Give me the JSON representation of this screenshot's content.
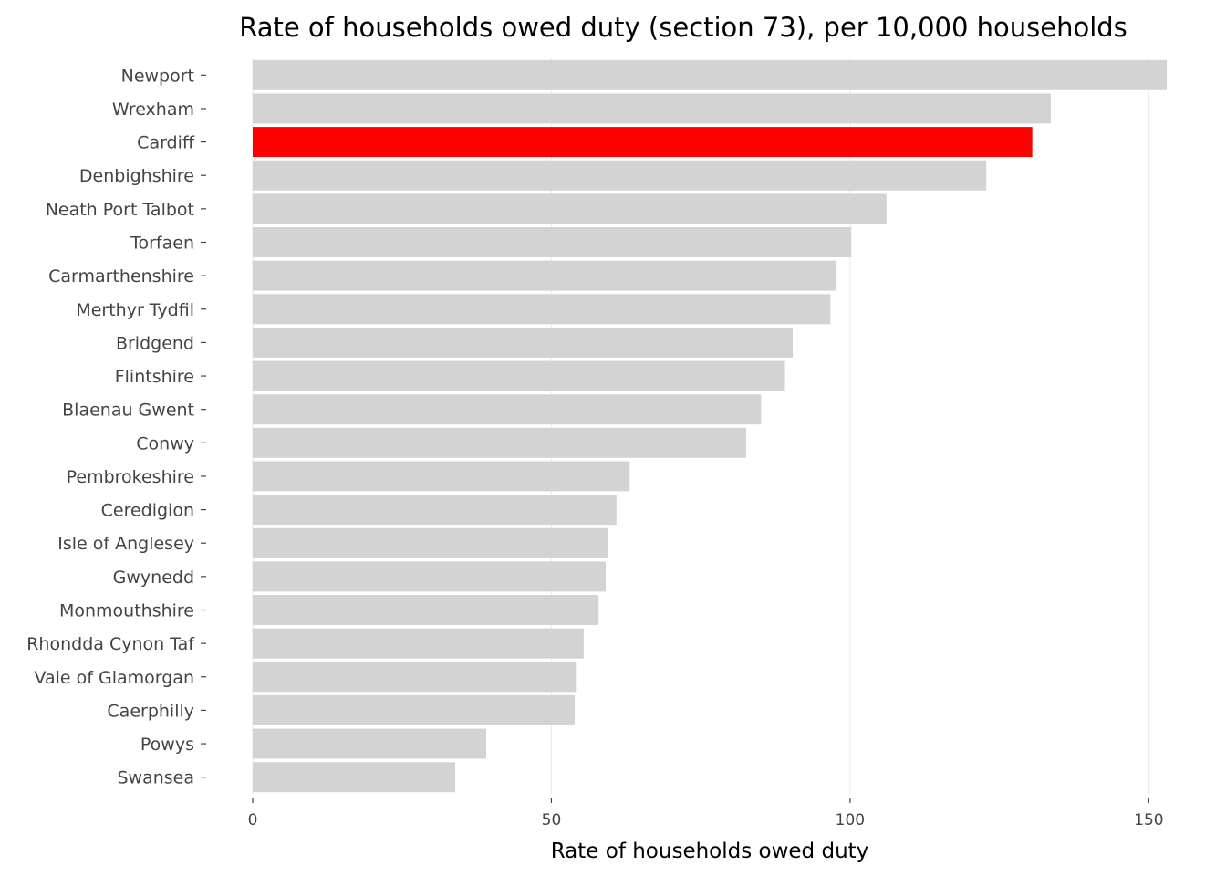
{
  "chart_data": {
    "type": "bar",
    "orientation": "horizontal",
    "title": "Rate of households owed duty (section 73), per 10,000 households",
    "xlabel": "Rate of households owed duty",
    "ylabel": "",
    "categories": [
      "Newport",
      "Wrexham",
      "Cardiff",
      "Denbighshire",
      "Neath Port Talbot",
      "Torfaen",
      "Carmarthenshire",
      "Merthyr Tydfil",
      "Bridgend",
      "Flintshire",
      "Blaenau Gwent",
      "Conwy",
      "Pembrokeshire",
      "Ceredigion",
      "Isle of Anglesey",
      "Gwynedd",
      "Monmouthshire",
      "Rhondda Cynon Taf",
      "Vale of Glamorgan",
      "Caerphilly",
      "Powys",
      "Swansea"
    ],
    "values": [
      153,
      133.6,
      130.5,
      122.8,
      106.1,
      100.2,
      97.6,
      96.7,
      90.4,
      89.1,
      85.1,
      82.6,
      63.1,
      60.9,
      59.5,
      59.1,
      57.9,
      55.4,
      54.1,
      53.9,
      39.1,
      33.9
    ],
    "highlight": "Cardiff",
    "colors": {
      "default": "#d3d3d3",
      "highlight": "#ff0000"
    },
    "xlim": [
      0,
      153
    ],
    "xticks": [
      0,
      50,
      100,
      150
    ],
    "grid": "vertical-major",
    "legend": "none"
  }
}
